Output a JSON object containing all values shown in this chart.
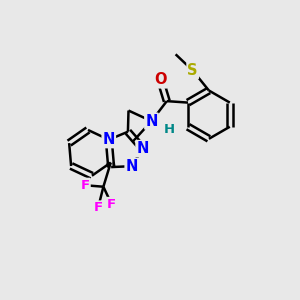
{
  "bg_color": "#e8e8e8",
  "atom_colors": {
    "C": "#000000",
    "N": "#0000ff",
    "O": "#cc0000",
    "S": "#aaaa00",
    "F": "#ff00ff",
    "H": "#008888"
  },
  "bond_color": "#000000",
  "bond_width": 1.8
}
